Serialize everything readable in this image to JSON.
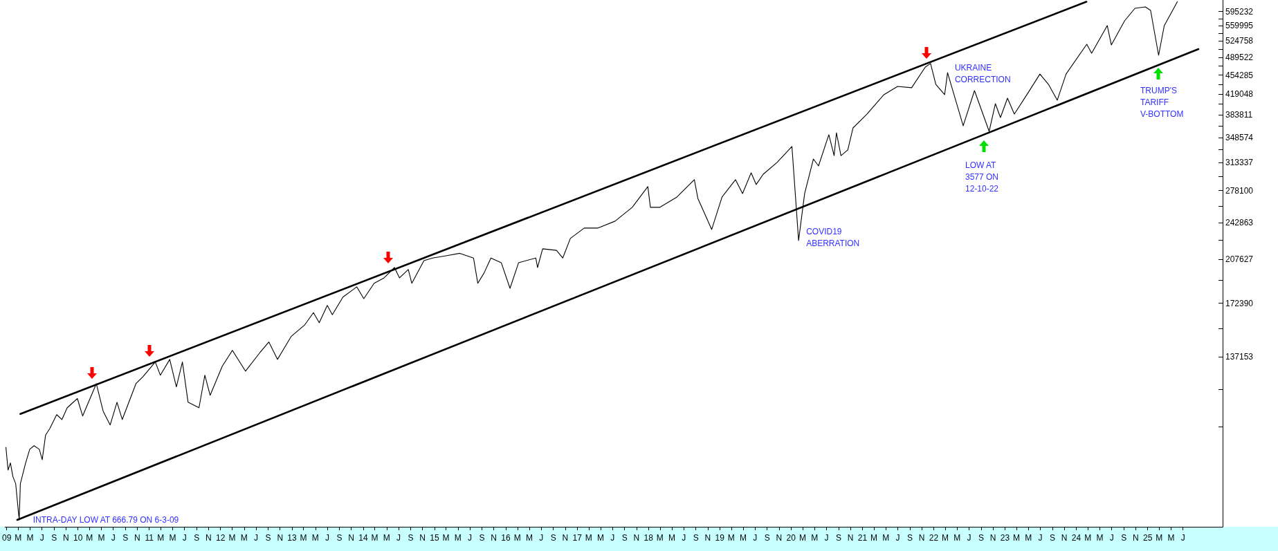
{
  "chart_data": {
    "type": "line",
    "log": "y",
    "marker": "none",
    "line_style": "solid",
    "xlim": [
      "2008-12-24",
      "2026-01-20"
    ],
    "ylim": [
      66700,
      624900
    ],
    "xticks": [
      {
        "value": "2009-01",
        "label": "09"
      },
      {
        "value": "2009-03",
        "label": "M"
      },
      {
        "value": "2009-05",
        "label": "M"
      },
      {
        "value": "2009-07",
        "label": "J"
      },
      {
        "value": "2009-09",
        "label": "S"
      },
      {
        "value": "2009-11",
        "label": "N"
      },
      {
        "value": "2010-01",
        "label": "10"
      },
      {
        "value": "2010-03",
        "label": "M"
      },
      {
        "value": "2010-05",
        "label": "M"
      },
      {
        "value": "2010-07",
        "label": "J"
      },
      {
        "value": "2010-09",
        "label": "S"
      },
      {
        "value": "2010-11",
        "label": "N"
      },
      {
        "value": "2011-01",
        "label": "11"
      },
      {
        "value": "2011-03",
        "label": "M"
      },
      {
        "value": "2011-05",
        "label": "M"
      },
      {
        "value": "2011-07",
        "label": "J"
      },
      {
        "value": "2011-09",
        "label": "S"
      },
      {
        "value": "2011-11",
        "label": "N"
      },
      {
        "value": "2012-01",
        "label": "12"
      },
      {
        "value": "2012-03",
        "label": "M"
      },
      {
        "value": "2012-05",
        "label": "M"
      },
      {
        "value": "2012-07",
        "label": "J"
      },
      {
        "value": "2012-09",
        "label": "S"
      },
      {
        "value": "2012-11",
        "label": "N"
      },
      {
        "value": "2013-01",
        "label": "13"
      },
      {
        "value": "2013-03",
        "label": "M"
      },
      {
        "value": "2013-05",
        "label": "M"
      },
      {
        "value": "2013-07",
        "label": "J"
      },
      {
        "value": "2013-09",
        "label": "S"
      },
      {
        "value": "2013-11",
        "label": "N"
      },
      {
        "value": "2014-01",
        "label": "14"
      },
      {
        "value": "2014-03",
        "label": "M"
      },
      {
        "value": "2014-05",
        "label": "M"
      },
      {
        "value": "2014-07",
        "label": "J"
      },
      {
        "value": "2014-09",
        "label": "S"
      },
      {
        "value": "2014-11",
        "label": "N"
      },
      {
        "value": "2015-01",
        "label": "15"
      },
      {
        "value": "2015-03",
        "label": "M"
      },
      {
        "value": "2015-05",
        "label": "M"
      },
      {
        "value": "2015-07",
        "label": "J"
      },
      {
        "value": "2015-09",
        "label": "S"
      },
      {
        "value": "2015-11",
        "label": "N"
      },
      {
        "value": "2016-01",
        "label": "16"
      },
      {
        "value": "2016-03",
        "label": "M"
      },
      {
        "value": "2016-05",
        "label": "M"
      },
      {
        "value": "2016-07",
        "label": "J"
      },
      {
        "value": "2016-09",
        "label": "S"
      },
      {
        "value": "2016-11",
        "label": "N"
      },
      {
        "value": "2017-01",
        "label": "17"
      },
      {
        "value": "2017-03",
        "label": "M"
      },
      {
        "value": "2017-05",
        "label": "M"
      },
      {
        "value": "2017-07",
        "label": "J"
      },
      {
        "value": "2017-09",
        "label": "S"
      },
      {
        "value": "2017-11",
        "label": "N"
      },
      {
        "value": "2018-01",
        "label": "18"
      },
      {
        "value": "2018-03",
        "label": "M"
      },
      {
        "value": "2018-05",
        "label": "M"
      },
      {
        "value": "2018-07",
        "label": "J"
      },
      {
        "value": "2018-09",
        "label": "S"
      },
      {
        "value": "2018-11",
        "label": "N"
      },
      {
        "value": "2019-01",
        "label": "19"
      },
      {
        "value": "2019-03",
        "label": "M"
      },
      {
        "value": "2019-05",
        "label": "M"
      },
      {
        "value": "2019-07",
        "label": "J"
      },
      {
        "value": "2019-09",
        "label": "S"
      },
      {
        "value": "2019-11",
        "label": "N"
      },
      {
        "value": "2020-01",
        "label": "20"
      },
      {
        "value": "2020-03",
        "label": "M"
      },
      {
        "value": "2020-05",
        "label": "M"
      },
      {
        "value": "2020-07",
        "label": "J"
      },
      {
        "value": "2020-09",
        "label": "S"
      },
      {
        "value": "2020-11",
        "label": "N"
      },
      {
        "value": "2021-01",
        "label": "21"
      },
      {
        "value": "2021-03",
        "label": "M"
      },
      {
        "value": "2021-05",
        "label": "M"
      },
      {
        "value": "2021-07",
        "label": "J"
      },
      {
        "value": "2021-09",
        "label": "S"
      },
      {
        "value": "2021-11",
        "label": "N"
      },
      {
        "value": "2022-01",
        "label": "22"
      },
      {
        "value": "2022-03",
        "label": "M"
      },
      {
        "value": "2022-05",
        "label": "M"
      },
      {
        "value": "2022-07",
        "label": "J"
      },
      {
        "value": "2022-09",
        "label": "S"
      },
      {
        "value": "2022-11",
        "label": "N"
      },
      {
        "value": "2023-01",
        "label": "23"
      },
      {
        "value": "2023-03",
        "label": "M"
      },
      {
        "value": "2023-05",
        "label": "M"
      },
      {
        "value": "2023-07",
        "label": "J"
      },
      {
        "value": "2023-09",
        "label": "S"
      },
      {
        "value": "2023-11",
        "label": "N"
      },
      {
        "value": "2024-01",
        "label": "24"
      },
      {
        "value": "2024-03",
        "label": "M"
      },
      {
        "value": "2024-05",
        "label": "M"
      },
      {
        "value": "2024-07",
        "label": "J"
      },
      {
        "value": "2024-09",
        "label": "S"
      },
      {
        "value": "2024-11",
        "label": "N"
      },
      {
        "value": "2025-01",
        "label": "25"
      },
      {
        "value": "2025-03",
        "label": "M"
      },
      {
        "value": "2025-05",
        "label": "M"
      },
      {
        "value": "2025-07",
        "label": "J"
      }
    ],
    "yticks": [
      {
        "value": 101916,
        "label": null
      },
      {
        "value": 119535,
        "label": null
      },
      137153,
      {
        "value": 154772,
        "label": null
      },
      172390,
      {
        "value": 190009,
        "label": null
      },
      207627,
      {
        "value": 225245,
        "label": null
      },
      242863,
      {
        "value": 260482,
        "label": null
      },
      278100,
      {
        "value": 295719,
        "label": null
      },
      313337,
      {
        "value": 330956,
        "label": null
      },
      348574,
      {
        "value": 366193,
        "label": null
      },
      383811,
      {
        "value": 401430,
        "label": null
      },
      419048,
      {
        "value": 436667,
        "label": null
      },
      454285,
      {
        "value": 471904,
        "label": null
      },
      489522,
      {
        "value": 507140,
        "label": null
      },
      524758,
      {
        "value": 542377,
        "label": null
      },
      559995,
      {
        "value": 577614,
        "label": null
      },
      595232
    ],
    "annotations": [
      {
        "text": "INTRA-DAY LOW AT 666.79 ON 6-3-09",
        "x": "2009-03-06",
        "y": 68700
      },
      {
        "text": "COVID19\nABERRATION",
        "x": "2020-02-09",
        "y": 225000
      },
      {
        "text": "UKRAINE\nCORRECTION",
        "x": "2021-12-16",
        "y": 477100
      },
      "LOW AT\n3577 ON\n12-10-22",
      "TRUMP'S\nTARIFF\nV-BOTTOM"
    ],
    "series": [
      {
        "color": "#000000",
        "x": [
          "2008-12-28",
          "2009-01-08",
          "2009-01-20",
          "2009-02-02",
          "2009-02-16",
          "2009-03-06",
          "2009-03-12",
          "2009-04-08",
          "2009-04-29",
          "2009-05-21",
          "2009-06-17",
          "2009-07-02",
          "2009-07-19",
          "2009-08-10",
          "2009-09-14",
          "2009-10-11",
          "2009-11-07",
          "2009-12-29",
          "2010-01-25",
          "2010-04-05",
          "2010-05-10",
          "2010-06-15",
          "2010-07-20",
          "2010-08-16",
          "2010-10-25",
          "2010-11-30",
          "2011-02-01",
          "2011-02-27",
          "2011-04-16",
          "2011-05-20",
          "2011-06-20",
          "2011-07-19",
          "2011-09-13",
          "2011-10-13",
          "2011-11-09",
          "2012-01-10",
          "2012-03-02",
          "2012-05-08",
          "2012-07-21",
          "2012-09-05",
          "2012-10-19",
          "2012-12-28",
          "2013-03-08",
          "2013-04-21",
          "2013-05-21",
          "2013-07-01",
          "2013-07-27",
          "2013-09-19",
          "2013-11-29",
          "2014-01-04",
          "2014-02-26",
          "2014-04-18",
          "2014-06-10",
          "2014-07-06",
          "2014-08-20",
          "2014-09-07",
          "2014-11-08",
          "2014-12-22",
          "2015-03-01",
          "2015-05-11",
          "2015-07-20",
          "2015-08-11",
          "2015-09-12",
          "2015-10-17",
          "2015-12-09",
          "2016-01-23",
          "2016-03-07",
          "2016-06-03",
          "2016-06-12",
          "2016-07-08",
          "2016-09-17",
          "2016-10-19",
          "2016-11-27",
          "2017-02-06",
          "2017-04-16",
          "2017-07-14",
          "2017-10-10",
          "2017-12-29",
          "2018-01-11",
          "2018-03-01",
          "2018-05-27",
          "2018-08-24",
          "2018-09-11",
          "2018-11-21",
          "2019-01-13",
          "2019-03-23",
          "2019-04-28",
          "2019-06-11",
          "2019-07-07",
          "2019-08-12",
          "2019-10-22",
          "2020-01-06",
          "2020-02-09",
          "2020-03-11",
          "2020-04-25",
          "2020-05-21",
          "2020-07-13",
          "2020-08-09",
          "2020-08-21",
          "2020-09-13",
          "2020-10-18",
          "2020-11-14",
          "2021-01-24",
          "2021-04-21",
          "2021-06-30",
          "2021-09-10",
          "2021-11-19",
          "2021-12-16",
          "2022-01-12",
          "2022-02-26",
          "2022-03-13",
          "2022-06-01",
          "2022-07-29",
          "2022-10-12",
          "2022-11-13",
          "2022-12-09",
          "2023-01-14",
          "2023-02-18",
          "2023-04-28",
          "2023-06-29",
          "2023-08-12",
          "2023-09-26",
          "2023-11-10",
          "2024-02-24",
          "2024-03-20",
          "2024-06-08",
          "2024-06-29",
          "2024-09-05",
          "2024-10-28",
          "2024-12-20",
          "2025-01-16",
          "2025-02-26",
          "2025-03-27",
          "2025-06-02"
        ],
        "values": [
          93500,
          84900,
          87500,
          82500,
          80100,
          68700,
          80100,
          87500,
          92700,
          94100,
          92700,
          88700,
          98400,
          101300,
          107400,
          105200,
          110600,
          115000,
          106800,
          122500,
          109000,
          102800,
          113200,
          105200,
          122500,
          126200,
          134300,
          127000,
          135800,
          120800,
          134300,
          113200,
          110600,
          127000,
          116600,
          131900,
          141100,
          129200,
          139800,
          146200,
          135800,
          149700,
          157300,
          165600,
          158700,
          170800,
          164200,
          176900,
          184800,
          175800,
          187600,
          192000,
          200600,
          192000,
          198900,
          187600,
          206600,
          208900,
          210900,
          213100,
          208900,
          187600,
          196000,
          208900,
          204800,
          183700,
          204800,
          208900,
          200600,
          217200,
          215800,
          208900,
          227000,
          237200,
          237200,
          244300,
          259100,
          282900,
          259100,
          259100,
          270700,
          291300,
          269100,
          235800,
          270700,
          291300,
          274700,
          300000,
          285400,
          298200,
          313500,
          335400,
          225000,
          274700,
          318100,
          308900,
          352600,
          322700,
          355600,
          322700,
          330600,
          363000,
          384900,
          418000,
          433000,
          430500,
          470000,
          477100,
          436700,
          418000,
          459000,
          366300,
          425400,
          357700,
          402300,
          379400,
          411900,
          384900,
          420500,
          456300,
          436700,
          408300,
          456300,
          517800,
          498600,
          560600,
          516300,
          572200,
          603300,
          606800,
          598000,
          494100,
          560600,
          620300
        ]
      },
      {
        "color": "#000000",
        "x": [
          "2009-03-12",
          "2024-02-22"
        ],
        "values": [
          107700,
          620300
        ]
      },
      {
        "color": "#000000",
        "x": [
          "2009-02-24",
          "2025-09-18"
        ],
        "values": [
          68700,
          507300
        ]
      }
    ]
  }
}
